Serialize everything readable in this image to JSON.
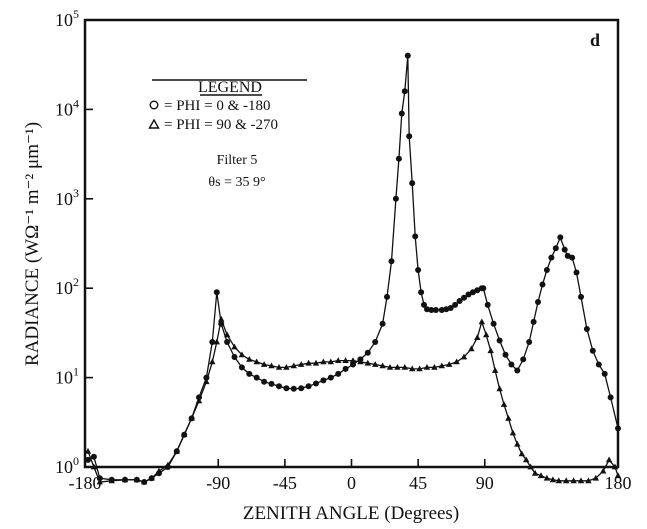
{
  "chart_data": {
    "type": "line",
    "panel_label": "d",
    "xlabel": "ZENITH ANGLE (Degrees)",
    "ylabel": "RADIANCE (WΩ⁻¹  m⁻²  μm⁻¹)",
    "xlim": [
      -180,
      180
    ],
    "ylim": [
      1,
      100000
    ],
    "yscale": "log",
    "x_ticks": [
      "-180",
      "-90",
      "-45",
      "0",
      "45",
      "90",
      "180"
    ],
    "y_ticks": [
      {
        "base": "10",
        "exp": "0"
      },
      {
        "base": "10",
        "exp": "1"
      },
      {
        "base": "10",
        "exp": "2"
      },
      {
        "base": "10",
        "exp": "3"
      },
      {
        "base": "10",
        "exp": "4"
      },
      {
        "base": "10",
        "exp": "5"
      }
    ],
    "legend": {
      "title": "LEGEND",
      "entries": [
        "= PHI =   0 & -180",
        "= PHI = 90 & -270"
      ],
      "position": "upper-left"
    },
    "annotations": [
      "Filter 5",
      "θs = 35 9°"
    ],
    "grid": false,
    "series": [
      {
        "name": "PHI = 0 & -180",
        "marker": "circle",
        "x": [
          -178,
          -174,
          -170,
          -162,
          -153,
          -145,
          -140,
          -135,
          -130,
          -124,
          -118,
          -113,
          -108,
          -103,
          -98,
          -94,
          -91,
          -88,
          -84,
          -79,
          -74,
          -69,
          -64,
          -59,
          -54,
          -49,
          -44,
          -39,
          -34,
          -29,
          -24,
          -19,
          -14,
          -9,
          -4,
          1,
          6,
          11,
          16,
          21,
          24,
          27,
          30,
          32,
          34,
          36,
          38,
          39,
          41,
          43,
          45,
          47,
          49,
          51,
          54,
          57,
          61,
          64,
          67,
          70,
          73,
          76,
          79,
          82,
          85,
          88,
          89,
          92,
          96,
          100,
          104,
          108,
          112,
          116,
          120,
          123,
          126,
          129,
          132,
          135,
          138,
          141,
          144,
          146,
          149,
          152,
          155,
          159,
          163,
          167,
          171,
          175,
          180
        ],
        "values": [
          1.2,
          1.3,
          0.75,
          0.72,
          0.72,
          0.72,
          0.68,
          0.75,
          0.85,
          1.0,
          1.5,
          2.3,
          3.5,
          6.0,
          10.0,
          25.0,
          90.0,
          40.0,
          25.0,
          17.0,
          13.0,
          11.0,
          10.0,
          9.0,
          8.5,
          8.0,
          7.6,
          7.5,
          7.6,
          8.0,
          8.6,
          9.3,
          10.0,
          11.0,
          12.5,
          14.0,
          16.0,
          19.0,
          25.0,
          40.0,
          80.0,
          200.0,
          1000.0,
          2800.0,
          9000.0,
          16000.0,
          40000.0,
          5000.0,
          1500.0,
          380.0,
          160.0,
          90.0,
          65.0,
          58.0,
          57.0,
          57.0,
          57.0,
          58.0,
          60.0,
          65.0,
          72.0,
          78.0,
          85.0,
          90.0,
          95.0,
          100.0,
          100.0,
          65.0,
          40.0,
          26.0,
          18.0,
          14.0,
          12.0,
          16.0,
          25.0,
          42.0,
          70.0,
          110.0,
          160.0,
          220.0,
          280.0,
          370.0,
          270.0,
          230.0,
          220.0,
          150.0,
          80.0,
          35.0,
          20.0,
          14.0,
          11.0,
          6.0,
          2.7
        ]
      },
      {
        "name": "PHI = 90 & -270",
        "marker": "triangle",
        "x": [
          -178,
          -174,
          -170,
          -162,
          -153,
          -145,
          -140,
          -135,
          -130,
          -124,
          -118,
          -113,
          -108,
          -103,
          -98,
          -94,
          -91,
          -88,
          -84,
          -79,
          -74,
          -69,
          -64,
          -59,
          -54,
          -49,
          -44,
          -39,
          -34,
          -29,
          -24,
          -19,
          -14,
          -9,
          -4,
          1,
          6,
          11,
          16,
          21,
          26,
          31,
          36,
          41,
          46,
          51,
          56,
          61,
          66,
          71,
          76,
          81,
          85,
          88,
          91,
          94,
          97,
          100,
          103,
          106,
          109,
          112,
          115,
          118,
          121,
          124,
          128,
          132,
          136,
          140,
          145,
          150,
          155,
          160,
          165,
          170,
          174,
          178,
          180
        ],
        "values": [
          1.5,
          1.0,
          0.68,
          0.7,
          0.72,
          0.72,
          0.68,
          0.75,
          0.9,
          1.05,
          1.5,
          2.3,
          3.5,
          5.5,
          9.0,
          15.0,
          25.0,
          45.0,
          30.0,
          22.0,
          18.0,
          16.0,
          15.0,
          14.0,
          13.5,
          13.0,
          13.0,
          13.5,
          14.0,
          14.5,
          14.5,
          15.0,
          15.0,
          15.5,
          15.5,
          15.5,
          15.0,
          14.5,
          14.0,
          13.5,
          13.0,
          13.0,
          13.0,
          12.5,
          12.5,
          13.0,
          13.0,
          13.5,
          14.0,
          15.0,
          17.0,
          21.0,
          28.0,
          42.0,
          30.0,
          20.0,
          12.0,
          7.5,
          5.0,
          3.5,
          2.4,
          1.8,
          1.4,
          1.2,
          1.0,
          0.85,
          0.8,
          0.75,
          0.72,
          0.7,
          0.7,
          0.7,
          0.7,
          0.7,
          0.75,
          0.9,
          1.2,
          1.0,
          0.8
        ]
      }
    ]
  }
}
